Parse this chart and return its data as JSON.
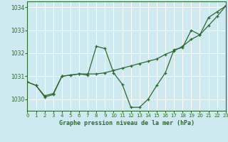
{
  "title": "Graphe pression niveau de la mer (hPa)",
  "bg_color": "#ceeaf0",
  "grid_color": "#ffffff",
  "line_color": "#2d6a2d",
  "xlim": [
    0,
    23
  ],
  "ylim": [
    1029.5,
    1034.25
  ],
  "yticks": [
    1030,
    1031,
    1032,
    1033,
    1034
  ],
  "xticks": [
    0,
    1,
    2,
    3,
    4,
    5,
    6,
    7,
    8,
    9,
    10,
    11,
    12,
    13,
    14,
    15,
    16,
    17,
    18,
    19,
    20,
    21,
    22,
    23
  ],
  "series_wavy_x": [
    0,
    1,
    2,
    3,
    4,
    5,
    6,
    7,
    8,
    9,
    10,
    11,
    12,
    13,
    14,
    15,
    16,
    17,
    18,
    19,
    20,
    21,
    22,
    23
  ],
  "series_wavy_y": [
    1030.75,
    1030.6,
    1030.1,
    1030.2,
    1031.0,
    1031.05,
    1031.1,
    1031.05,
    1032.3,
    1032.2,
    1031.15,
    1030.65,
    1029.65,
    1029.65,
    1030.0,
    1030.6,
    1031.15,
    1032.15,
    1032.25,
    1033.0,
    1032.8,
    1033.55,
    1033.8,
    1034.05
  ],
  "series_trend_x": [
    0,
    1,
    2,
    3,
    4,
    5,
    6,
    7,
    8,
    9,
    10,
    11,
    12,
    13,
    14,
    15,
    16,
    17,
    18,
    19,
    20,
    21,
    22,
    23
  ],
  "series_trend_y": [
    1030.75,
    1030.6,
    1030.15,
    1030.25,
    1031.0,
    1031.05,
    1031.1,
    1031.1,
    1031.1,
    1031.15,
    1031.25,
    1031.35,
    1031.45,
    1031.55,
    1031.65,
    1031.75,
    1031.95,
    1032.1,
    1032.3,
    1032.6,
    1032.8,
    1033.2,
    1033.6,
    1034.05
  ]
}
